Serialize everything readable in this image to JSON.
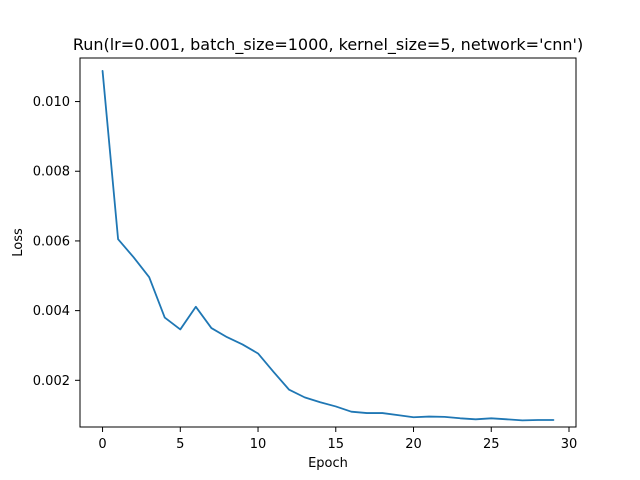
{
  "chart_data": {
    "type": "line",
    "title": "Run(lr=0.001, batch_size=1000, kernel_size=5, network='cnn')",
    "xlabel": "Epoch",
    "ylabel": "Loss",
    "xlim": [
      -1.45,
      30.45
    ],
    "ylim": [
      0.00066,
      0.01125
    ],
    "x_ticks": [
      0,
      5,
      10,
      15,
      20,
      25,
      30
    ],
    "y_ticks": [
      0.002,
      0.004,
      0.006,
      0.008,
      0.01
    ],
    "x_tick_labels": [
      "0",
      "5",
      "10",
      "15",
      "20",
      "25",
      "30"
    ],
    "y_tick_labels": [
      "0.002",
      "0.004",
      "0.006",
      "0.008",
      "0.010"
    ],
    "grid": false,
    "series": [
      {
        "color": "#1f77b4",
        "x": [
          0,
          1,
          2,
          3,
          4,
          5,
          6,
          7,
          8,
          9,
          10,
          11,
          12,
          13,
          14,
          15,
          16,
          17,
          18,
          19,
          20,
          21,
          22,
          23,
          24,
          25,
          26,
          27,
          28,
          29
        ],
        "y": [
          0.01088,
          0.00605,
          0.00553,
          0.00496,
          0.0038,
          0.00346,
          0.00411,
          0.0035,
          0.00324,
          0.00303,
          0.00277,
          0.00224,
          0.00173,
          0.00151,
          0.00137,
          0.00125,
          0.0011,
          0.00106,
          0.00106,
          0.001,
          0.00094,
          0.00096,
          0.00095,
          0.00091,
          0.00088,
          0.00091,
          0.00088,
          0.00085,
          0.00086,
          0.00086
        ]
      }
    ]
  }
}
